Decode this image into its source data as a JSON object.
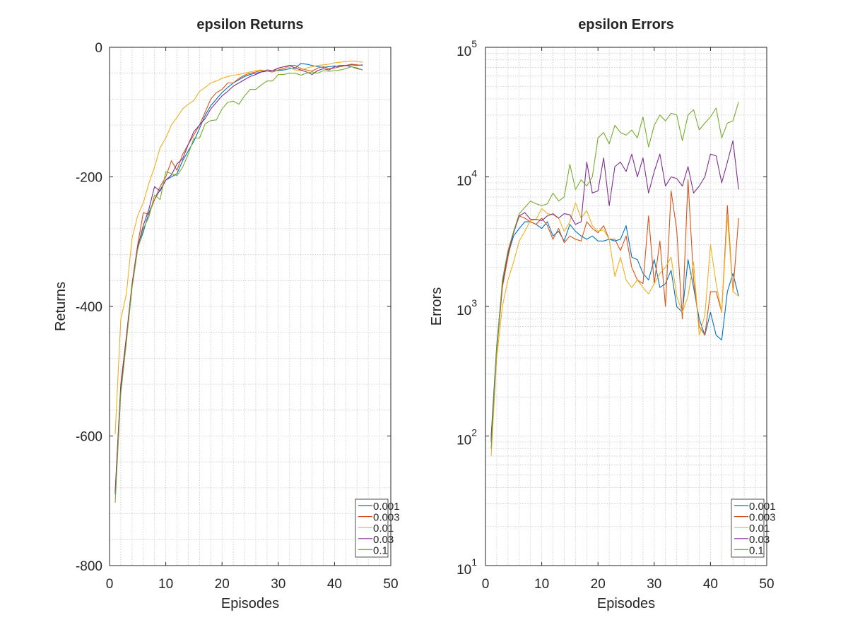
{
  "chart_data": [
    {
      "type": "line",
      "title": "epsilon Returns",
      "xlabel": "Episodes",
      "ylabel": "Returns",
      "xlim": [
        0,
        50
      ],
      "ylim": [
        -800,
        0
      ],
      "yscale": "linear",
      "xticks": [
        "0",
        "10",
        "20",
        "30",
        "40",
        "50"
      ],
      "yticks": [
        "0",
        "-200",
        "-400",
        "-600",
        "-800"
      ],
      "grid": true,
      "legend_position": "bottom-right",
      "series": [
        {
          "name": "0.001",
          "color": "#0072BD",
          "x": [
            1,
            2,
            3,
            4,
            5,
            6,
            7,
            8,
            9,
            10,
            11,
            12,
            13,
            14,
            15,
            16,
            17,
            18,
            19,
            20,
            21,
            22,
            23,
            24,
            25,
            26,
            27,
            28,
            29,
            30,
            31,
            32,
            33,
            34,
            35,
            36,
            37,
            38,
            39,
            40,
            41,
            42,
            43,
            44,
            45
          ],
          "y": [
            -690,
            -530,
            -450,
            -370,
            -310,
            -285,
            -255,
            -235,
            -220,
            -205,
            -200,
            -195,
            -175,
            -160,
            -145,
            -125,
            -105,
            -90,
            -80,
            -70,
            -62,
            -55,
            -50,
            -45,
            -42,
            -40,
            -38,
            -37,
            -36,
            -36,
            -35,
            -33,
            -32,
            -25,
            -26,
            -28,
            -30,
            -31,
            -30,
            -29,
            -30,
            -28,
            -27,
            -28,
            -27
          ]
        },
        {
          "name": "0.003",
          "color": "#D95319",
          "x": [
            1,
            2,
            3,
            4,
            5,
            6,
            7,
            8,
            9,
            10,
            11,
            12,
            13,
            14,
            15,
            16,
            17,
            18,
            19,
            20,
            21,
            22,
            23,
            24,
            25,
            26,
            27,
            28,
            29,
            30,
            31,
            32,
            33,
            34,
            35,
            36,
            37,
            38,
            39,
            40,
            41,
            42,
            43,
            44,
            45
          ],
          "y": [
            -685,
            -520,
            -445,
            -365,
            -305,
            -255,
            -258,
            -235,
            -215,
            -200,
            -175,
            -190,
            -165,
            -150,
            -135,
            -120,
            -100,
            -80,
            -70,
            -65,
            -55,
            -55,
            -48,
            -43,
            -40,
            -38,
            -36,
            -37,
            -38,
            -35,
            -33,
            -28,
            -28,
            -33,
            -35,
            -37,
            -32,
            -30,
            -33,
            -32,
            -30,
            -28,
            -26,
            -27,
            -28
          ]
        },
        {
          "name": "0.01",
          "color": "#EDB120",
          "x": [
            1,
            2,
            3,
            4,
            5,
            6,
            7,
            8,
            9,
            10,
            11,
            12,
            13,
            14,
            15,
            16,
            17,
            18,
            19,
            20,
            21,
            22,
            23,
            24,
            25,
            26,
            27,
            28,
            29,
            30,
            31,
            32,
            33,
            34,
            35,
            36,
            37,
            38,
            39,
            40,
            41,
            42,
            43,
            44,
            45
          ],
          "y": [
            -597,
            -420,
            -380,
            -295,
            -260,
            -240,
            -210,
            -185,
            -155,
            -140,
            -120,
            -108,
            -95,
            -88,
            -82,
            -68,
            -62,
            -55,
            -52,
            -48,
            -45,
            -43,
            -42,
            -40,
            -38,
            -36,
            -35,
            -37,
            -36,
            -33,
            -30,
            -31,
            -35,
            -36,
            -32,
            -30,
            -28,
            -27,
            -26,
            -24,
            -23,
            -22,
            -21,
            -22,
            -23
          ]
        },
        {
          "name": "0.03",
          "color": "#7E2F8E",
          "x": [
            1,
            2,
            3,
            4,
            5,
            6,
            7,
            8,
            9,
            10,
            11,
            12,
            13,
            14,
            15,
            16,
            17,
            18,
            19,
            20,
            21,
            22,
            23,
            24,
            25,
            26,
            27,
            28,
            29,
            30,
            31,
            32,
            33,
            34,
            35,
            36,
            37,
            38,
            39,
            40,
            41,
            42,
            43,
            44,
            45
          ],
          "y": [
            -687,
            -525,
            -448,
            -368,
            -308,
            -275,
            -250,
            -215,
            -222,
            -205,
            -197,
            -180,
            -172,
            -150,
            -130,
            -120,
            -110,
            -95,
            -85,
            -75,
            -68,
            -60,
            -55,
            -50,
            -45,
            -42,
            -38,
            -35,
            -36,
            -32,
            -30,
            -28,
            -32,
            -35,
            -38,
            -42,
            -36,
            -33,
            -35,
            -30,
            -28,
            -28,
            -30,
            -32,
            -35
          ]
        },
        {
          "name": "0.1",
          "color": "#77AC30",
          "x": [
            1,
            2,
            3,
            4,
            5,
            6,
            7,
            8,
            9,
            10,
            11,
            12,
            13,
            14,
            15,
            16,
            17,
            18,
            19,
            20,
            21,
            22,
            23,
            24,
            25,
            26,
            27,
            28,
            29,
            30,
            31,
            32,
            33,
            34,
            35,
            36,
            37,
            38,
            39,
            40,
            41,
            42,
            43,
            44,
            45
          ],
          "y": [
            -703,
            -535,
            -455,
            -372,
            -312,
            -280,
            -262,
            -228,
            -235,
            -192,
            -195,
            -198,
            -185,
            -165,
            -140,
            -140,
            -118,
            -113,
            -112,
            -95,
            -85,
            -83,
            -88,
            -75,
            -65,
            -65,
            -58,
            -52,
            -52,
            -42,
            -42,
            -40,
            -40,
            -43,
            -40,
            -38,
            -40,
            -36,
            -37,
            -36,
            -35,
            -33,
            -30,
            -33,
            -35
          ]
        }
      ]
    },
    {
      "type": "line",
      "title": "epsilon Errors",
      "xlabel": "Episodes",
      "ylabel": "Errors",
      "xlim": [
        0,
        50
      ],
      "ylim": [
        10,
        100000
      ],
      "yscale": "log",
      "xticks": [
        "0",
        "10",
        "20",
        "30",
        "40",
        "50"
      ],
      "yticks": [
        {
          "base": "10",
          "exp": "1",
          "value": 10
        },
        {
          "base": "10",
          "exp": "2",
          "value": 100
        },
        {
          "base": "10",
          "exp": "3",
          "value": 1000
        },
        {
          "base": "10",
          "exp": "4",
          "value": 10000
        },
        {
          "base": "10",
          "exp": "5",
          "value": 100000
        }
      ],
      "grid": true,
      "legend_position": "bottom-right",
      "series": [
        {
          "name": "0.001",
          "color": "#0072BD",
          "x": [
            1,
            2,
            3,
            4,
            5,
            6,
            7,
            8,
            9,
            10,
            11,
            12,
            13,
            14,
            15,
            16,
            17,
            18,
            19,
            20,
            21,
            22,
            23,
            24,
            25,
            26,
            27,
            28,
            29,
            30,
            31,
            32,
            33,
            34,
            35,
            36,
            37,
            38,
            39,
            40,
            41,
            42,
            43,
            44,
            45
          ],
          "y": [
            100,
            500,
            1500,
            2500,
            3500,
            4000,
            4500,
            4500,
            4300,
            4000,
            4500,
            3500,
            3800,
            3200,
            4300,
            3800,
            3500,
            3300,
            3500,
            3200,
            3200,
            3300,
            3200,
            3300,
            4200,
            2400,
            2300,
            1800,
            1600,
            2300,
            1400,
            1500,
            1900,
            1000,
            900,
            2300,
            1400,
            800,
            600,
            900,
            600,
            550,
            1300,
            1800,
            1200
          ]
        },
        {
          "name": "0.003",
          "color": "#D95319",
          "x": [
            1,
            2,
            3,
            4,
            5,
            6,
            7,
            8,
            9,
            10,
            11,
            12,
            13,
            14,
            15,
            16,
            17,
            18,
            19,
            20,
            21,
            22,
            23,
            24,
            25,
            26,
            27,
            28,
            29,
            30,
            31,
            32,
            33,
            34,
            35,
            36,
            37,
            38,
            39,
            40,
            41,
            42,
            43,
            44,
            45
          ],
          "y": [
            95,
            450,
            1400,
            2400,
            3800,
            5000,
            4800,
            4500,
            4300,
            4800,
            4200,
            3300,
            4000,
            3100,
            3500,
            3300,
            3200,
            4500,
            4000,
            3700,
            4200,
            3300,
            3300,
            2700,
            3500,
            2000,
            1600,
            1500,
            5000,
            1500,
            3200,
            1000,
            7800,
            3900,
            800,
            9500,
            1600,
            700,
            600,
            1300,
            1300,
            900,
            6000,
            1300,
            4800
          ]
        },
        {
          "name": "0.01",
          "color": "#EDB120",
          "x": [
            1,
            2,
            3,
            4,
            5,
            6,
            7,
            8,
            9,
            10,
            11,
            12,
            13,
            14,
            15,
            16,
            17,
            18,
            19,
            20,
            21,
            22,
            23,
            24,
            25,
            26,
            27,
            28,
            29,
            30,
            31,
            32,
            33,
            34,
            35,
            36,
            37,
            38,
            39,
            40,
            41,
            42,
            43,
            44,
            45
          ],
          "y": [
            70,
            400,
            1000,
            1600,
            2200,
            3200,
            3800,
            4600,
            4700,
            5700,
            5200,
            5100,
            4800,
            3800,
            4500,
            6300,
            4800,
            5500,
            4200,
            3800,
            3900,
            3300,
            1700,
            2400,
            1600,
            1400,
            1600,
            1400,
            1250,
            1500,
            1800,
            2000,
            2400,
            1200,
            900,
            1200,
            2200,
            600,
            850,
            3000,
            1500,
            900,
            5000,
            1300,
            1200
          ]
        },
        {
          "name": "0.03",
          "color": "#7E2F8E",
          "x": [
            1,
            2,
            3,
            4,
            5,
            6,
            7,
            8,
            9,
            10,
            11,
            12,
            13,
            14,
            15,
            16,
            17,
            18,
            19,
            20,
            21,
            22,
            23,
            24,
            25,
            26,
            27,
            28,
            29,
            30,
            31,
            32,
            33,
            34,
            35,
            36,
            37,
            38,
            39,
            40,
            41,
            42,
            43,
            44,
            45
          ],
          "y": [
            90,
            480,
            1500,
            2600,
            3700,
            5000,
            5300,
            4700,
            4700,
            4600,
            5000,
            5200,
            4800,
            5200,
            5100,
            4300,
            4500,
            13000,
            7500,
            7800,
            14000,
            6000,
            12000,
            13000,
            11000,
            15000,
            10000,
            14000,
            7500,
            11000,
            15000,
            8500,
            10000,
            9700,
            8500,
            12000,
            7500,
            8500,
            10000,
            15000,
            14500,
            9000,
            13000,
            19000,
            8000
          ]
        },
        {
          "name": "0.1",
          "color": "#77AC30",
          "x": [
            1,
            2,
            3,
            4,
            5,
            6,
            7,
            8,
            9,
            10,
            11,
            12,
            13,
            14,
            15,
            16,
            17,
            18,
            19,
            20,
            21,
            22,
            23,
            24,
            25,
            26,
            27,
            28,
            29,
            30,
            31,
            32,
            33,
            34,
            35,
            36,
            37,
            38,
            39,
            40,
            41,
            42,
            43,
            44,
            45
          ],
          "y": [
            80,
            470,
            1600,
            2700,
            3800,
            5200,
            5800,
            6500,
            6200,
            6000,
            6200,
            7500,
            6500,
            7000,
            12500,
            8000,
            9500,
            8500,
            10000,
            20000,
            22000,
            18000,
            25000,
            22000,
            21000,
            23000,
            20000,
            29000,
            17000,
            25000,
            30000,
            27000,
            31000,
            30000,
            19000,
            30000,
            33000,
            23000,
            26000,
            29000,
            34000,
            20000,
            26000,
            27000,
            38000
          ]
        }
      ]
    }
  ]
}
